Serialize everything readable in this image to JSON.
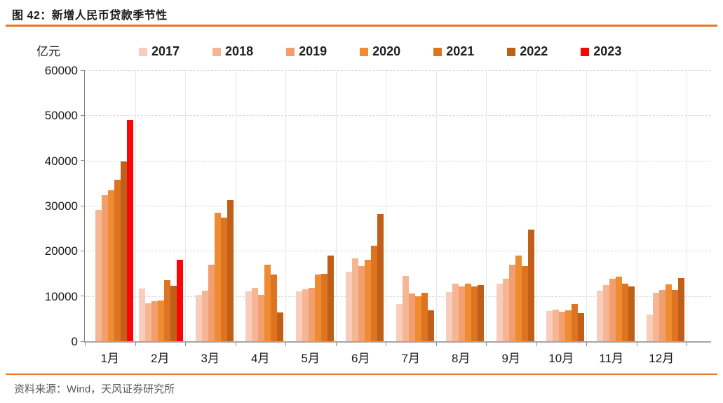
{
  "header": {
    "title": "图 42：新增人民币贷款季节性"
  },
  "footer": {
    "source": "资料来源：Wind，天风证券研究所"
  },
  "colors": {
    "accent_rule": "#e87722",
    "grid": "#d9d9d9",
    "axis": "#7f7f7f",
    "text": "#1a1a1a",
    "footer_text": "#595959"
  },
  "chart_data": {
    "type": "bar",
    "title": "图 42：新增人民币贷款季节性",
    "ylabel": "亿元",
    "xlabel": "",
    "ylim": [
      0,
      60000
    ],
    "yticks": [
      0,
      10000,
      20000,
      30000,
      40000,
      50000,
      60000
    ],
    "grid": "horizontal-dashed",
    "legend_position": "top",
    "categories": [
      "1月",
      "2月",
      "3月",
      "4月",
      "5月",
      "6月",
      "7月",
      "8月",
      "9月",
      "10月",
      "11月",
      "12月"
    ],
    "series": [
      {
        "name": "2017",
        "color": "#f8cdbb",
        "values": [
          null,
          11700,
          10200,
          11000,
          11100,
          15400,
          8255,
          10900,
          12700,
          6632,
          11200,
          5844
        ]
      },
      {
        "name": "2018",
        "color": "#f6b693",
        "values": [
          29000,
          8393,
          11200,
          11800,
          11500,
          18400,
          14500,
          12800,
          13800,
          6970,
          12500,
          10800
        ]
      },
      {
        "name": "2019",
        "color": "#f29e6f",
        "values": [
          32300,
          8858,
          16900,
          10200,
          11800,
          16600,
          10600,
          12100,
          16900,
          6613,
          13900,
          11400
        ]
      },
      {
        "name": "2020",
        "color": "#ef8b30",
        "values": [
          33400,
          9057,
          28500,
          17000,
          14800,
          18100,
          9927,
          12800,
          19000,
          6898,
          14300,
          12600
        ]
      },
      {
        "name": "2021",
        "color": "#de7420",
        "values": [
          35800,
          13600,
          27300,
          14700,
          15000,
          21200,
          10800,
          12200,
          16600,
          8262,
          12700,
          11300
        ]
      },
      {
        "name": "2022",
        "color": "#c05f17",
        "values": [
          39800,
          12300,
          31300,
          6454,
          18900,
          28100,
          6790,
          12500,
          24700,
          6152,
          12100,
          14000
        ]
      },
      {
        "name": "2023",
        "color": "#f90606",
        "values": [
          49000,
          18100,
          null,
          null,
          null,
          null,
          null,
          null,
          null,
          null,
          null,
          null
        ]
      }
    ]
  }
}
